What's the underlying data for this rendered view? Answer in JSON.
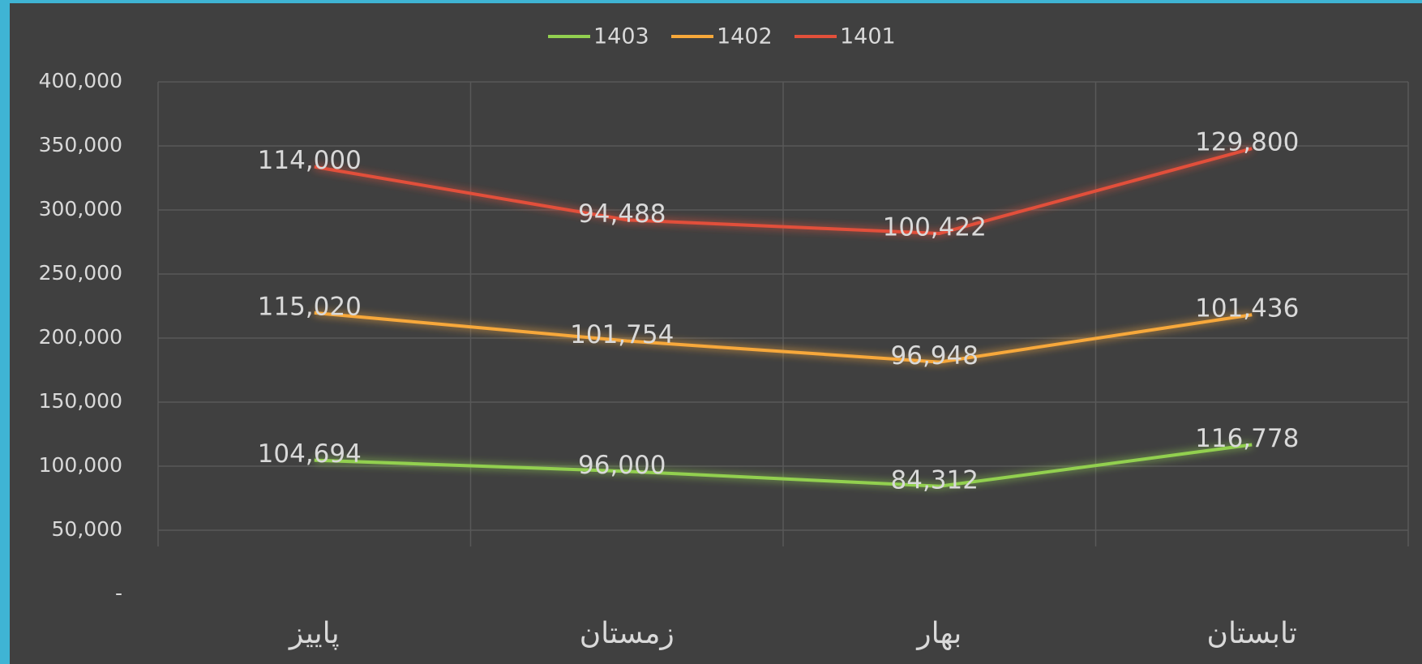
{
  "chart_data": {
    "type": "stacked_line",
    "categories": [
      "پاییز",
      "زمستان",
      "بهار",
      "تابستان"
    ],
    "series": [
      {
        "name": "1403",
        "color": "#92d050",
        "values": [
          104694,
          96000,
          84312,
          116778
        ],
        "value_labels": [
          "104,694",
          "96,000",
          "84,312",
          "116,778"
        ]
      },
      {
        "name": "1402",
        "color": "#f7a83a",
        "values": [
          115020,
          101754,
          96948,
          101436
        ],
        "value_labels": [
          "115,020",
          "101,754",
          "96,948",
          "101,436"
        ]
      },
      {
        "name": "1401",
        "color": "#e2503a",
        "values": [
          114000,
          94488,
          100422,
          129800
        ],
        "value_labels": [
          "114,000",
          "94,488",
          "100,422",
          "129,800"
        ]
      }
    ],
    "ylim": [
      0,
      400000
    ],
    "yticks": [
      {
        "value": 0,
        "label": "-"
      },
      {
        "value": 50000,
        "label": "50,000"
      },
      {
        "value": 100000,
        "label": "100,000"
      },
      {
        "value": 150000,
        "label": "150,000"
      },
      {
        "value": 200000,
        "label": "200,000"
      },
      {
        "value": 250000,
        "label": "250,000"
      },
      {
        "value": 300000,
        "label": "300,000"
      },
      {
        "value": 350000,
        "label": "350,000"
      },
      {
        "value": 400000,
        "label": "400,000"
      }
    ],
    "grid": true,
    "legend": "top"
  }
}
